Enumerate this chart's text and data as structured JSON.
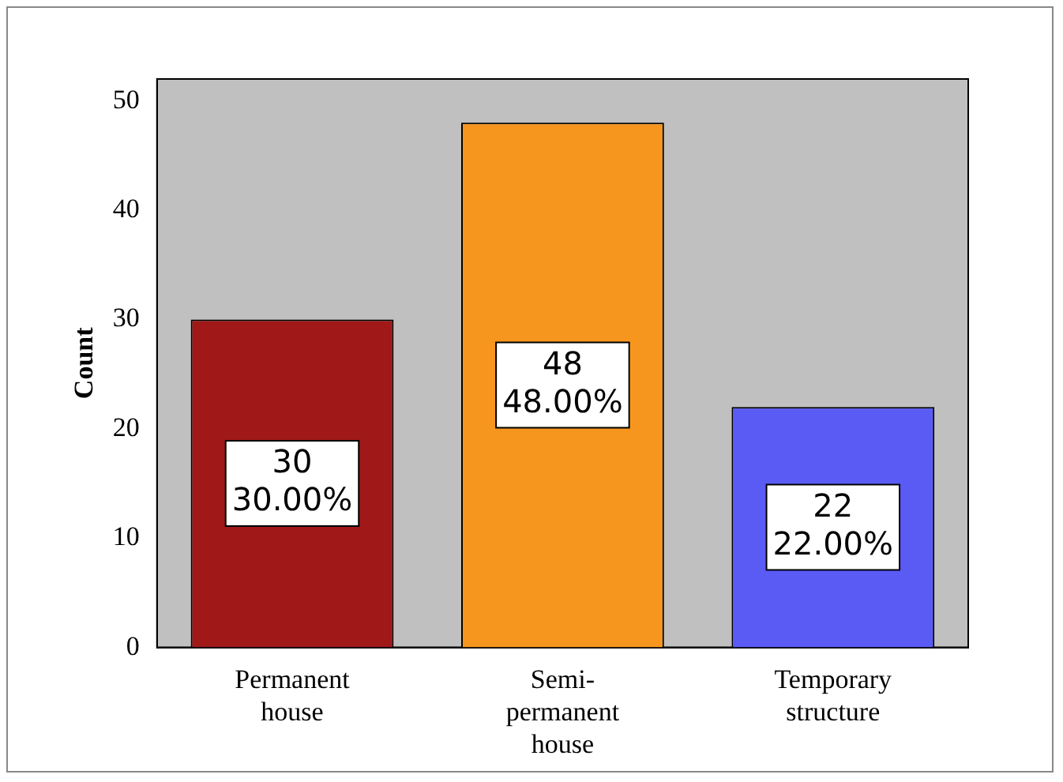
{
  "chart_data": {
    "type": "bar",
    "ylabel": "Count",
    "categories": [
      "Permanent house",
      "Semi-permanent house",
      "Temporary structure"
    ],
    "values": [
      30,
      48,
      22
    ],
    "colors": [
      "#a01818",
      "#f7961e",
      "#5a5af5"
    ],
    "value_labels": [
      "30\n30.00%",
      "48\n48.00%",
      "22\n22.00%"
    ],
    "ylim": [
      0,
      52
    ],
    "yticks": [
      0,
      10,
      20,
      30,
      40,
      50
    ],
    "grid": false,
    "legend": false
  }
}
